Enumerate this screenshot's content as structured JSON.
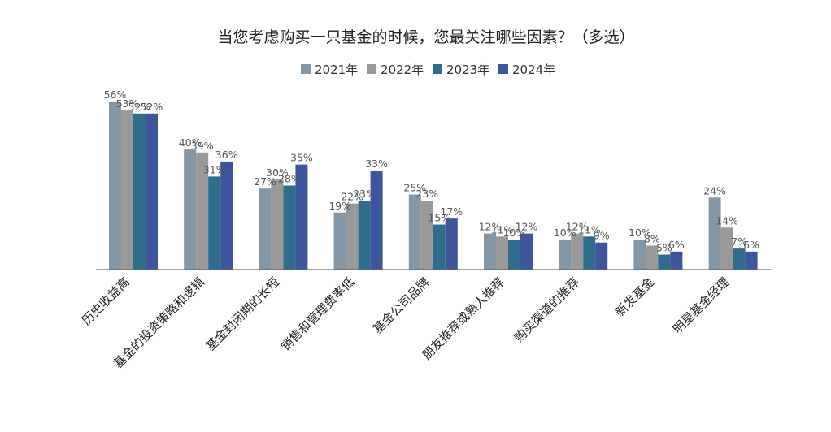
{
  "chart_data": {
    "type": "bar",
    "title": "当您考虑购买一只基金的时候，您最关注哪些因素？（多选）",
    "xlabel": "",
    "ylabel": "",
    "ylim": [
      0,
      60
    ],
    "grid": false,
    "legend_position": "top",
    "categories": [
      "历史收益高",
      "基金的投资策略和逻辑",
      "基金封闭期的长短",
      "销售和管理费率低",
      "基金公司品牌",
      "朋友推荐或熟人推荐",
      "购买渠道的推荐",
      "新发基金",
      "明星基金经理"
    ],
    "series": [
      {
        "name": "2021年",
        "color": "#8497a6",
        "values": [
          56,
          40,
          27,
          19,
          25,
          12,
          10,
          10,
          24
        ]
      },
      {
        "name": "2022年",
        "color": "#9a9a9a",
        "values": [
          53,
          39,
          30,
          22,
          23,
          11,
          12,
          8,
          14
        ]
      },
      {
        "name": "2023年",
        "color": "#2e6e8c",
        "values": [
          52,
          31,
          28,
          23,
          15,
          10,
          11,
          5,
          7
        ]
      },
      {
        "name": "2024年",
        "color": "#3d559c",
        "values": [
          52,
          36,
          35,
          33,
          17,
          12,
          9,
          6,
          6
        ]
      }
    ],
    "value_suffix": "%"
  }
}
